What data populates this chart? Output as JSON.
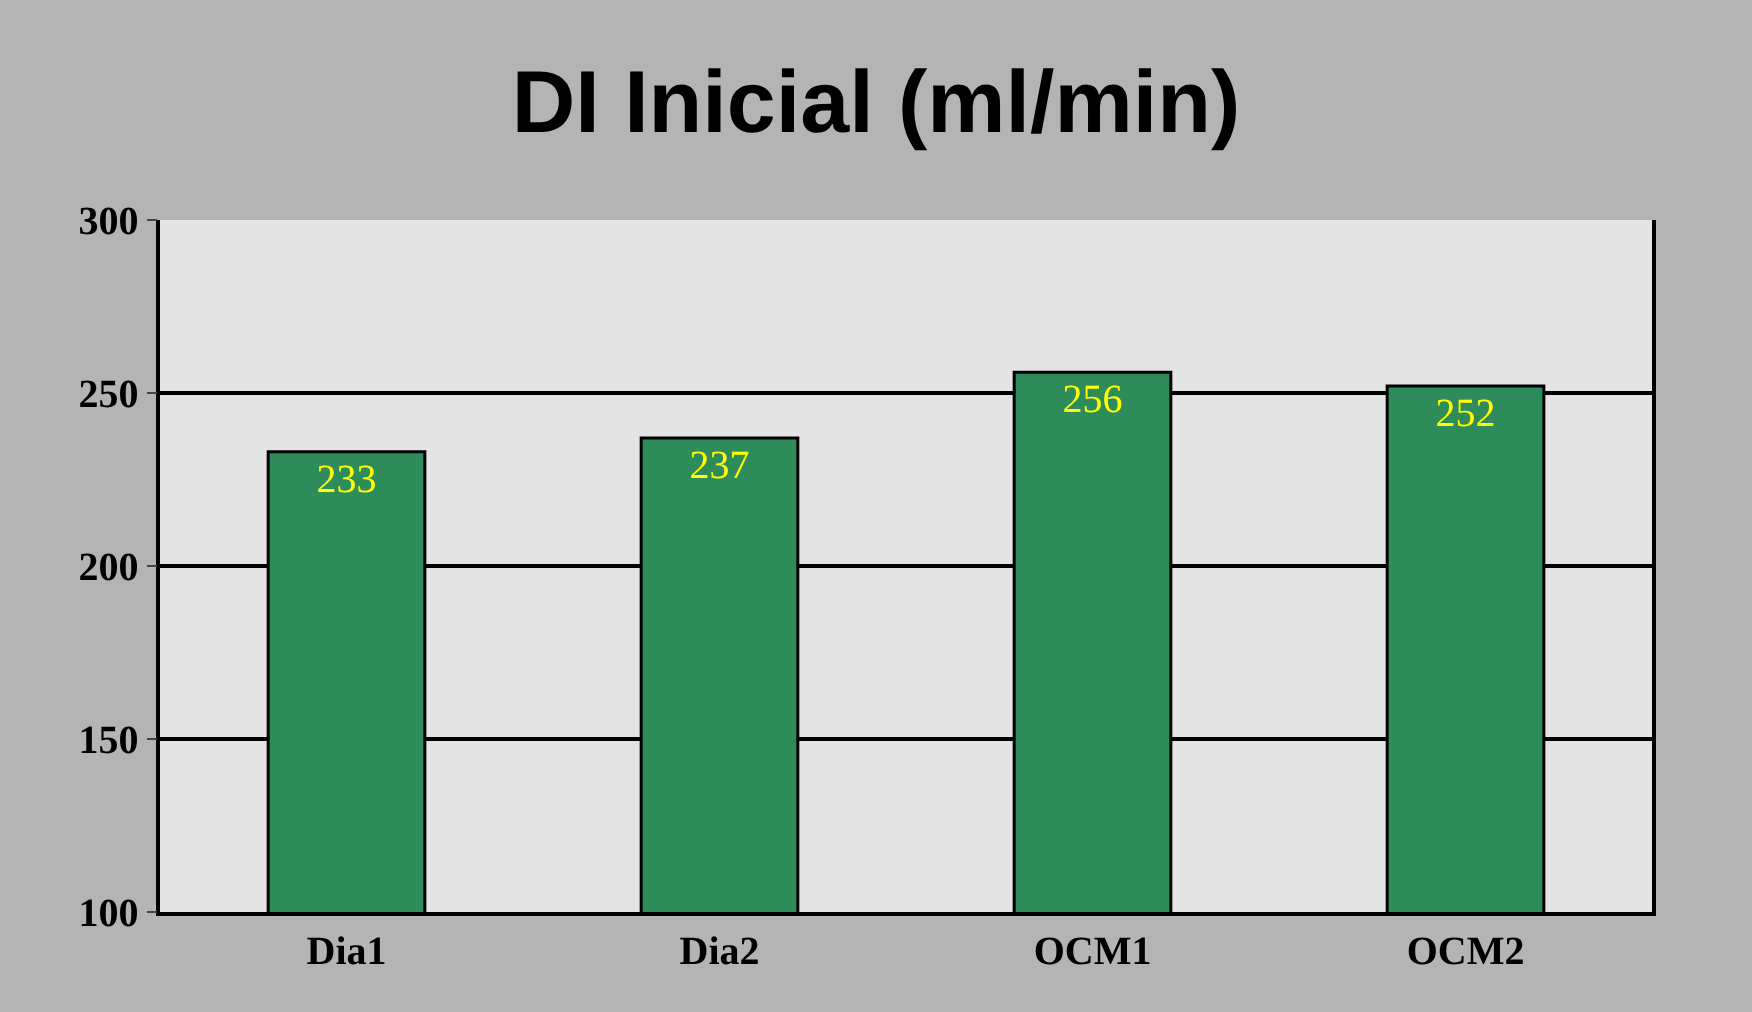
{
  "chart_data": {
    "type": "bar",
    "title": "DI Inicial (ml/min)",
    "categories": [
      "Dia1",
      "Dia2",
      "OCM1",
      "OCM2"
    ],
    "values": [
      233,
      237,
      256,
      252
    ],
    "color": "#2e8b5a",
    "ylim": [
      100,
      300
    ],
    "yticks": [
      100,
      150,
      200,
      250,
      300
    ],
    "grid": "y",
    "data_labels": true
  }
}
